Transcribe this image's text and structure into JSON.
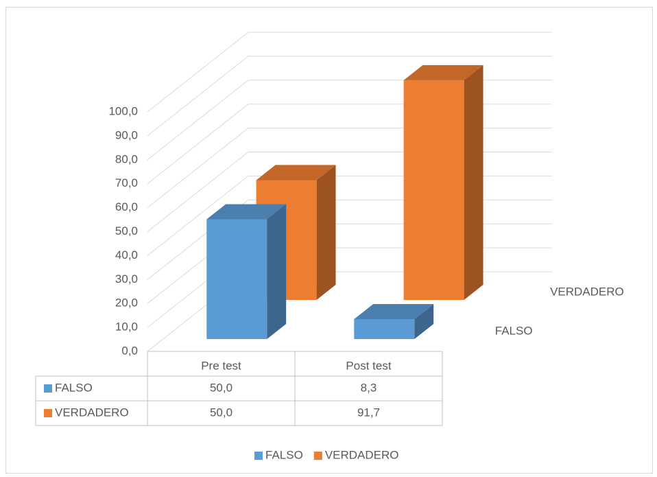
{
  "chart_data": {
    "type": "bar3d",
    "categories": [
      "Pre test",
      "Post test"
    ],
    "series": [
      {
        "name": "FALSO",
        "color": "#5b9bd5",
        "values": [
          50.0,
          8.3
        ],
        "value_labels": [
          "50,0",
          "8,3"
        ]
      },
      {
        "name": "VERDADERO",
        "color": "#ed7d31",
        "values": [
          50.0,
          91.7
        ],
        "value_labels": [
          "50,0",
          "91,7"
        ]
      }
    ],
    "ylim": [
      0,
      100
    ],
    "yticks": [
      {
        "value": 0,
        "label": "0,0"
      },
      {
        "value": 10,
        "label": "10,0"
      },
      {
        "value": 20,
        "label": "20,0"
      },
      {
        "value": 30,
        "label": "30,0"
      },
      {
        "value": 40,
        "label": "40,0"
      },
      {
        "value": 50,
        "label": "50,0"
      },
      {
        "value": 60,
        "label": "60,0"
      },
      {
        "value": 70,
        "label": "70,0"
      },
      {
        "value": 80,
        "label": "80,0"
      },
      {
        "value": 90,
        "label": "90,0"
      },
      {
        "value": 100,
        "label": "100,0"
      }
    ],
    "grid": true,
    "legend": "bottom",
    "data_table": true
  }
}
